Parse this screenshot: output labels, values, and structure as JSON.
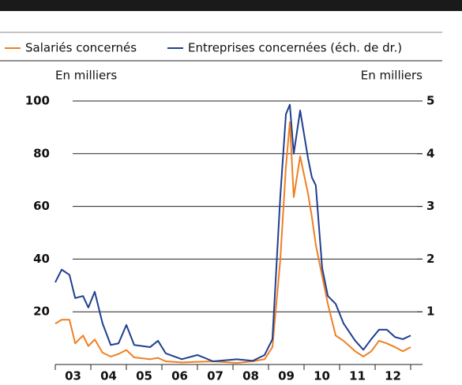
{
  "chart_data": {
    "type": "line",
    "y_label": "En milliers",
    "y2_label": "En milliers",
    "x": [
      2003.0,
      2003.18,
      2003.4,
      2003.56,
      2003.78,
      2003.93,
      2004.11,
      2004.33,
      2004.56,
      2004.78,
      2005.0,
      2005.22,
      2005.67,
      2005.89,
      2006.11,
      2006.56,
      2007.0,
      2007.44,
      2008.11,
      2008.56,
      2008.89,
      2009.11,
      2009.33,
      2009.49,
      2009.6,
      2009.71,
      2009.89,
      2010.11,
      2010.22,
      2010.33,
      2010.51,
      2010.67,
      2010.89,
      2011.11,
      2011.44,
      2011.67,
      2011.89,
      2012.11,
      2012.33,
      2012.56,
      2012.78,
      2013.0
    ],
    "series": [
      {
        "name": "Salariés concernés",
        "color": "#f07f22",
        "axis": "y",
        "values": [
          15.5,
          17,
          17,
          8,
          11,
          7,
          9.5,
          4.5,
          3,
          4,
          5.5,
          2.7,
          2,
          2.5,
          1.2,
          0.8,
          1,
          1.2,
          0.6,
          1.2,
          2,
          6.6,
          39.5,
          75,
          92,
          63.5,
          79,
          65,
          56,
          45.5,
          33.5,
          23,
          11,
          9,
          5,
          3,
          5,
          9,
          8,
          6.6,
          5,
          6.6
        ]
      },
      {
        "name": "Entreprises concernées (éch. de dr.)",
        "color": "#1f3f8f",
        "axis": "y2",
        "values": [
          1.56,
          1.8,
          1.7,
          1.26,
          1.3,
          1.08,
          1.38,
          0.78,
          0.37,
          0.4,
          0.75,
          0.37,
          0.33,
          0.45,
          0.21,
          0.1,
          0.18,
          0.06,
          0.1,
          0.07,
          0.18,
          0.48,
          3.17,
          4.75,
          4.93,
          4.0,
          4.82,
          3.92,
          3.55,
          3.4,
          1.83,
          1.3,
          1.15,
          0.78,
          0.45,
          0.28,
          0.48,
          0.66,
          0.66,
          0.52,
          0.48,
          0.55
        ]
      }
    ],
    "xlim": [
      2003,
      2013
    ],
    "xticks": [
      {
        "value": 2003.5,
        "label": "03"
      },
      {
        "value": 2004.5,
        "label": "04"
      },
      {
        "value": 2005.5,
        "label": "05"
      },
      {
        "value": 2006.5,
        "label": "06"
      },
      {
        "value": 2007.5,
        "label": "07"
      },
      {
        "value": 2008.5,
        "label": "08"
      },
      {
        "value": 2009.5,
        "label": "09"
      },
      {
        "value": 2010.5,
        "label": "10"
      },
      {
        "value": 2011.5,
        "label": "11"
      },
      {
        "value": 2012.5,
        "label": "12"
      }
    ],
    "ylim": [
      0,
      100
    ],
    "yticks": [
      20,
      40,
      60,
      80,
      100
    ],
    "y2lim": [
      0,
      5
    ],
    "y2ticks": [
      1,
      2,
      3,
      4,
      5
    ],
    "grid": true
  }
}
